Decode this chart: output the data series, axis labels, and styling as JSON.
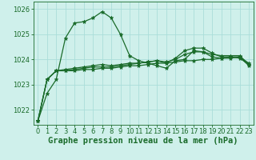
{
  "background_color": "#cff0eb",
  "grid_color": "#aaddda",
  "line_color": "#1a6b2a",
  "title": "Graphe pression niveau de la mer (hPa)",
  "xlim": [
    -0.5,
    23.5
  ],
  "ylim": [
    1021.4,
    1026.3
  ],
  "yticks": [
    1022,
    1023,
    1024,
    1025,
    1026
  ],
  "xticks": [
    0,
    1,
    2,
    3,
    4,
    5,
    6,
    7,
    8,
    9,
    10,
    11,
    12,
    13,
    14,
    15,
    16,
    17,
    18,
    19,
    20,
    21,
    22,
    23
  ],
  "series": [
    [
      1021.55,
      1022.65,
      1023.2,
      1024.85,
      1025.45,
      1025.5,
      1025.65,
      1025.9,
      1025.65,
      1025.0,
      1024.15,
      1023.95,
      1023.85,
      1023.75,
      1023.65,
      1023.95,
      1024.0,
      1024.35,
      1024.3,
      1024.1,
      1024.05,
      1024.1,
      1024.05,
      1023.8
    ],
    [
      1021.55,
      1023.2,
      1023.55,
      1023.55,
      1023.55,
      1023.6,
      1023.6,
      1023.65,
      1023.65,
      1023.7,
      1023.75,
      1023.75,
      1023.8,
      1023.85,
      1023.85,
      1023.9,
      1023.95,
      1023.95,
      1024.0,
      1024.0,
      1024.05,
      1024.05,
      1024.1,
      1023.85
    ],
    [
      1021.55,
      1023.2,
      1023.55,
      1023.55,
      1023.6,
      1023.65,
      1023.7,
      1023.7,
      1023.7,
      1023.75,
      1023.8,
      1023.85,
      1023.9,
      1023.95,
      1023.9,
      1024.0,
      1024.2,
      1024.3,
      1024.3,
      1024.2,
      1024.15,
      1024.15,
      1024.15,
      1023.8
    ],
    [
      1021.55,
      1023.2,
      1023.55,
      1023.6,
      1023.65,
      1023.7,
      1023.75,
      1023.8,
      1023.75,
      1023.8,
      1023.85,
      1023.85,
      1023.9,
      1023.95,
      1023.85,
      1024.05,
      1024.35,
      1024.45,
      1024.45,
      1024.25,
      1024.1,
      1024.1,
      1024.1,
      1023.75
    ]
  ],
  "marker": "*",
  "markersize": 3.5,
  "linewidth": 0.9,
  "title_fontsize": 7.5,
  "tick_fontsize": 6.0
}
